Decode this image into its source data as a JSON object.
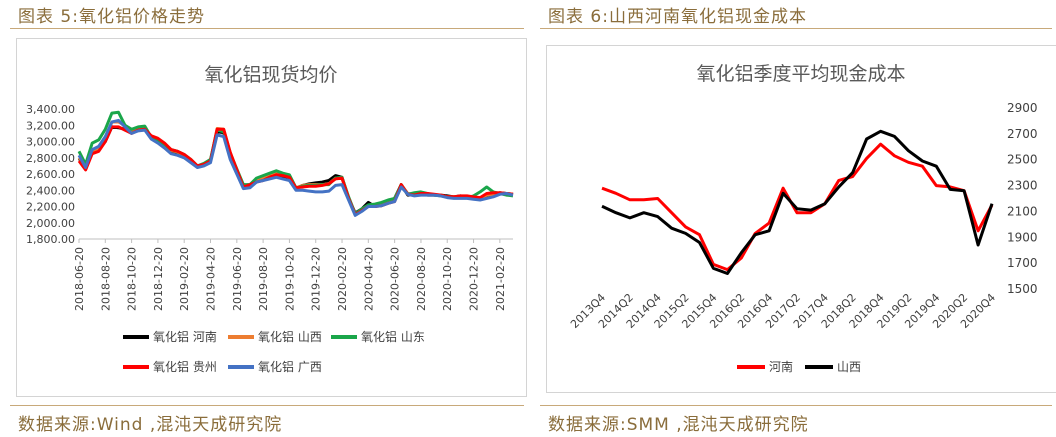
{
  "left": {
    "caption": "图表 5:氧化铝价格走势",
    "source": "数据来源:Wind ,混沌天成研究院"
  },
  "right": {
    "caption": "图表 6:山西河南氧化铝现金成本",
    "source": "数据来源:SMM ,混沌天成研究院"
  },
  "chart_data": [
    {
      "type": "line",
      "title": "氧化铝现货均价",
      "ylim": [
        1800,
        3400
      ],
      "yticks": [
        "1,800.00",
        "2,000.00",
        "2,200.00",
        "2,400.00",
        "2,600.00",
        "2,800.00",
        "3,000.00",
        "3,200.00",
        "3,400.00"
      ],
      "ytick_values": [
        1800,
        2000,
        2200,
        2400,
        2600,
        2800,
        3000,
        3200,
        3400
      ],
      "xticks": [
        "2018-06-20",
        "2018-08-20",
        "2018-10-20",
        "2018-12-20",
        "2019-02-20",
        "2019-04-20",
        "2019-06-20",
        "2019-08-20",
        "2019-10-20",
        "2019-12-20",
        "2020-02-20",
        "2020-04-20",
        "2020-06-20",
        "2020-08-20",
        "2020-10-20",
        "2020-12-20",
        "2021-02-20"
      ],
      "x_index_range": [
        0,
        33
      ],
      "legend_position": "bottom",
      "series": [
        {
          "name": "氧化铝 河南",
          "color": "#000000",
          "x": [
            0,
            0.5,
            1,
            1.5,
            2,
            2.5,
            3,
            3.5,
            4,
            4.5,
            5,
            5.5,
            6,
            6.5,
            7,
            7.5,
            8,
            8.5,
            9,
            9.5,
            10,
            10.5,
            11,
            11.5,
            12,
            12.5,
            13,
            13.5,
            14,
            14.5,
            15,
            15.5,
            16,
            16.5,
            17,
            17.5,
            18,
            18.5,
            19,
            19.5,
            20,
            20.5,
            21,
            21.5,
            22,
            22.5,
            23,
            23.5,
            24,
            24.5,
            25,
            25.5,
            26,
            26.5,
            27,
            27.5,
            28,
            28.5,
            29,
            29.5,
            30,
            30.5,
            31,
            31.5,
            32,
            32.5,
            33
          ],
          "y": [
            2790,
            2700,
            2860,
            2900,
            3000,
            3180,
            3170,
            3150,
            3130,
            3160,
            3150,
            3040,
            3000,
            2940,
            2880,
            2860,
            2820,
            2760,
            2700,
            2720,
            2760,
            3120,
            3110,
            2820,
            2640,
            2460,
            2470,
            2520,
            2560,
            2580,
            2590,
            2560,
            2540,
            2420,
            2460,
            2480,
            2490,
            2500,
            2520,
            2580,
            2560,
            2300,
            2120,
            2170,
            2250,
            2200,
            2220,
            2270,
            2300,
            2470,
            2340,
            2350,
            2360,
            2340,
            2340,
            2340,
            2330,
            2320,
            2330,
            2320,
            2310,
            2300,
            2330,
            2330,
            2370,
            2360,
            2350
          ]
        },
        {
          "name": "氧化铝 山西",
          "color": "#ed7d31",
          "x": [
            0,
            0.5,
            1,
            1.5,
            2,
            2.5,
            3,
            3.5,
            4,
            4.5,
            5,
            5.5,
            6,
            6.5,
            7,
            7.5,
            8,
            8.5,
            9,
            9.5,
            10,
            10.5,
            11,
            11.5,
            12,
            12.5,
            13,
            13.5,
            14,
            14.5,
            15,
            15.5,
            16,
            16.5,
            17,
            17.5,
            18,
            18.5,
            19,
            19.5,
            20,
            20.5,
            21,
            21.5,
            22,
            22.5,
            23,
            23.5,
            24,
            24.5,
            25,
            25.5,
            26,
            26.5,
            27,
            27.5,
            28,
            28.5,
            29,
            29.5,
            30,
            30.5,
            31,
            31.5,
            32,
            32.5,
            33
          ],
          "y": [
            2800,
            2700,
            2880,
            2920,
            3040,
            3240,
            3240,
            3200,
            3120,
            3160,
            3170,
            3060,
            3010,
            2940,
            2890,
            2870,
            2830,
            2780,
            2700,
            2720,
            2770,
            3160,
            3150,
            2860,
            2660,
            2460,
            2470,
            2530,
            2560,
            2600,
            2610,
            2590,
            2560,
            2430,
            2460,
            2470,
            2470,
            2470,
            2480,
            2550,
            2550,
            2310,
            2110,
            2160,
            2200,
            2210,
            2220,
            2250,
            2270,
            2470,
            2360,
            2350,
            2360,
            2350,
            2340,
            2340,
            2320,
            2320,
            2320,
            2320,
            2310,
            2300,
            2340,
            2350,
            2360,
            2360,
            2350
          ]
        },
        {
          "name": "氧化铝 山东",
          "color": "#1aa64a",
          "x": [
            0,
            0.5,
            1,
            1.5,
            2,
            2.5,
            3,
            3.5,
            4,
            4.5,
            5,
            5.5,
            6,
            6.5,
            7,
            7.5,
            8,
            8.5,
            9,
            9.5,
            10,
            10.5,
            11,
            11.5,
            12,
            12.5,
            13,
            13.5,
            14,
            14.5,
            15,
            15.5,
            16,
            16.5,
            17,
            17.5,
            18,
            18.5,
            19,
            19.5,
            20,
            20.5,
            21,
            21.5,
            22,
            22.5,
            23,
            23.5,
            24,
            24.5,
            25,
            25.5,
            26,
            26.5,
            27,
            27.5,
            28,
            28.5,
            29,
            29.5,
            30,
            30.5,
            31,
            31.5,
            32,
            32.5,
            33
          ],
          "y": [
            2880,
            2720,
            2980,
            3020,
            3150,
            3350,
            3360,
            3200,
            3150,
            3180,
            3190,
            3050,
            3000,
            2960,
            2900,
            2880,
            2840,
            2780,
            2700,
            2730,
            2780,
            3140,
            3120,
            2860,
            2660,
            2470,
            2470,
            2550,
            2580,
            2610,
            2640,
            2610,
            2590,
            2430,
            2450,
            2460,
            2460,
            2470,
            2470,
            2550,
            2560,
            2320,
            2110,
            2170,
            2220,
            2230,
            2250,
            2280,
            2300,
            2470,
            2350,
            2370,
            2380,
            2360,
            2340,
            2330,
            2320,
            2310,
            2310,
            2310,
            2330,
            2380,
            2440,
            2380,
            2360,
            2340,
            2330
          ]
        },
        {
          "name": "氧化铝 贵州",
          "color": "#ff0000",
          "x": [
            0,
            0.5,
            1,
            1.5,
            2,
            2.5,
            3,
            3.5,
            4,
            4.5,
            5,
            5.5,
            6,
            6.5,
            7,
            7.5,
            8,
            8.5,
            9,
            9.5,
            10,
            10.5,
            11,
            11.5,
            12,
            12.5,
            13,
            13.5,
            14,
            14.5,
            15,
            15.5,
            16,
            16.5,
            17,
            17.5,
            18,
            18.5,
            19,
            19.5,
            20,
            20.5,
            21,
            21.5,
            22,
            22.5,
            23,
            23.5,
            24,
            24.5,
            25,
            25.5,
            26,
            26.5,
            27,
            27.5,
            28,
            28.5,
            29,
            29.5,
            30,
            30.5,
            31,
            31.5,
            32,
            32.5,
            33
          ],
          "y": [
            2760,
            2650,
            2850,
            2880,
            3000,
            3180,
            3180,
            3140,
            3100,
            3140,
            3150,
            3070,
            3040,
            2980,
            2900,
            2880,
            2840,
            2780,
            2700,
            2720,
            2760,
            3150,
            3150,
            2870,
            2650,
            2440,
            2470,
            2500,
            2520,
            2560,
            2590,
            2580,
            2560,
            2430,
            2440,
            2450,
            2450,
            2460,
            2480,
            2540,
            2550,
            2300,
            2100,
            2150,
            2200,
            2200,
            2210,
            2240,
            2260,
            2470,
            2350,
            2340,
            2360,
            2360,
            2350,
            2340,
            2320,
            2320,
            2330,
            2330,
            2320,
            2310,
            2360,
            2370,
            2370,
            2360,
            2350
          ]
        },
        {
          "name": "氧化铝 广西",
          "color": "#4472c4",
          "x": [
            0,
            0.5,
            1,
            1.5,
            2,
            2.5,
            3,
            3.5,
            4,
            4.5,
            5,
            5.5,
            6,
            6.5,
            7,
            7.5,
            8,
            8.5,
            9,
            9.5,
            10,
            10.5,
            11,
            11.5,
            12,
            12.5,
            13,
            13.5,
            14,
            14.5,
            15,
            15.5,
            16,
            16.5,
            17,
            17.5,
            18,
            18.5,
            19,
            19.5,
            20,
            20.5,
            21,
            21.5,
            22,
            22.5,
            23,
            23.5,
            24,
            24.5,
            25,
            25.5,
            26,
            26.5,
            27,
            27.5,
            28,
            28.5,
            29,
            29.5,
            30,
            30.5,
            31,
            31.5,
            32,
            32.5,
            33
          ],
          "y": [
            2830,
            2680,
            2900,
            2940,
            3060,
            3240,
            3260,
            3180,
            3100,
            3130,
            3140,
            3030,
            2980,
            2920,
            2850,
            2830,
            2800,
            2740,
            2680,
            2700,
            2740,
            3080,
            3060,
            2780,
            2600,
            2420,
            2430,
            2500,
            2520,
            2540,
            2560,
            2540,
            2520,
            2400,
            2400,
            2390,
            2380,
            2380,
            2390,
            2460,
            2470,
            2280,
            2090,
            2140,
            2200,
            2200,
            2210,
            2240,
            2260,
            2440,
            2350,
            2330,
            2340,
            2340,
            2340,
            2330,
            2310,
            2300,
            2300,
            2300,
            2290,
            2280,
            2300,
            2320,
            2350,
            2360,
            2340
          ]
        }
      ]
    },
    {
      "type": "line",
      "title": "氧化铝季度平均现金成本",
      "ylim": [
        1500,
        2900
      ],
      "yticks": [
        "1500",
        "1700",
        "1900",
        "2100",
        "2300",
        "2500",
        "2700",
        "2900"
      ],
      "ytick_values": [
        1500,
        1700,
        1900,
        2100,
        2300,
        2500,
        2700,
        2900
      ],
      "categories": [
        "2013Q4",
        "2014Q1",
        "2014Q2",
        "2014Q3",
        "2014Q4",
        "2015Q1",
        "2015Q2",
        "2015Q3",
        "2015Q4",
        "2016Q1",
        "2016Q2",
        "2016Q3",
        "2016Q4",
        "2017Q1",
        "2017Q2",
        "2017Q3",
        "2017Q4",
        "2018Q1",
        "2018Q2",
        "2018Q3",
        "2018Q4",
        "2019Q1",
        "2019Q2",
        "2019Q3",
        "2019Q4",
        "2020Q1",
        "2020Q2",
        "2020Q3",
        "2020Q4"
      ],
      "xticks": [
        "2013Q4",
        "2014Q2",
        "2014Q4",
        "2015Q2",
        "2015Q4",
        "2016Q2",
        "2016Q4",
        "2017Q2",
        "2017Q4",
        "2018Q2",
        "2018Q4",
        "2019Q2",
        "2019Q4",
        "2020Q2",
        "2020Q4"
      ],
      "legend_position": "bottom",
      "series": [
        {
          "name": "河南",
          "color": "#ff0000",
          "values": [
            2280,
            2240,
            2190,
            2190,
            2200,
            2090,
            1980,
            1920,
            1690,
            1650,
            1740,
            1930,
            2010,
            2280,
            2090,
            2090,
            2160,
            2340,
            2370,
            2510,
            2620,
            2530,
            2480,
            2450,
            2300,
            2290,
            2260,
            1950,
            2150
          ]
        },
        {
          "name": "山西",
          "color": "#000000",
          "values": [
            2140,
            2090,
            2050,
            2090,
            2060,
            1970,
            1930,
            1860,
            1660,
            1620,
            1780,
            1920,
            1950,
            2240,
            2120,
            2110,
            2160,
            2290,
            2400,
            2660,
            2720,
            2680,
            2570,
            2490,
            2450,
            2270,
            2260,
            1840,
            2160
          ]
        }
      ]
    }
  ]
}
